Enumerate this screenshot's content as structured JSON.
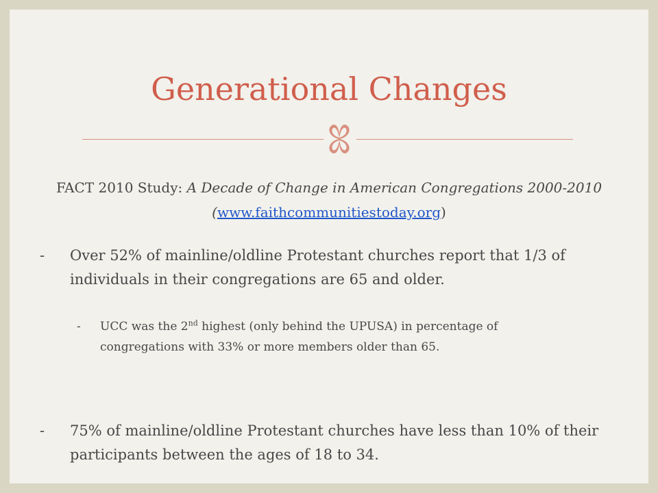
{
  "slide": {
    "title": "Generational Changes",
    "ornament_icon": "four-petal-flourish-icon",
    "colors": {
      "background_frame": "#d9d7c4",
      "slide": "#f2f1ec",
      "title": "#d05e4c",
      "body_text": "#474747",
      "link": "#1f56c9"
    },
    "subtitle": {
      "prefix": "FACT 2010 Study: ",
      "italic_title": "A Decade of Change in American Congregations 2000-2010",
      "open_paren": " (",
      "link_text": "www.faithcommunitiestoday.org",
      "close_paren": ")"
    },
    "bullets": [
      {
        "dash": "-",
        "text": "Over 52% of mainline/oldline Protestant churches report that 1/3 of individuals in their congregations are 65 and older."
      },
      {
        "dash": "-",
        "text_before_sup": "UCC was the 2",
        "sup": "nd",
        "text_after_sup": " highest (only behind the UPUSA) in percentage of congregations with 33% or more members older than 65."
      },
      {
        "dash": "-",
        "text": "75% of mainline/oldline Protestant churches have less than 10% of their participants between the ages of 18 to 34."
      }
    ]
  }
}
